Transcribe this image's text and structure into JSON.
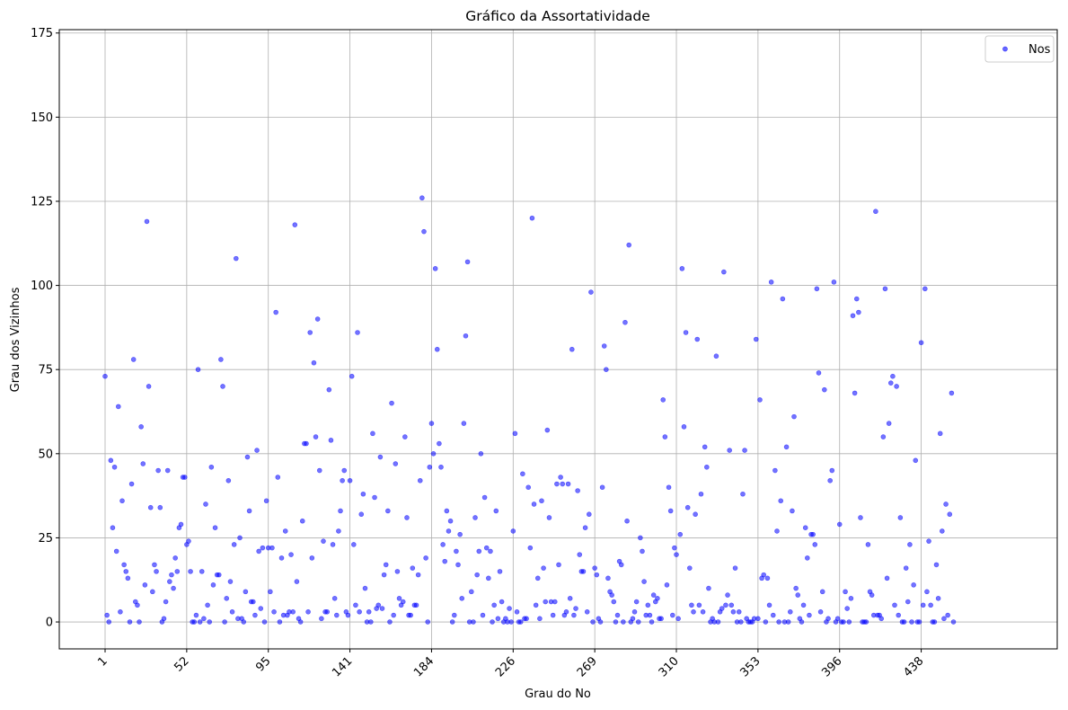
{
  "chart_data": {
    "type": "scatter",
    "title": "Gráfico da Assortatividade",
    "xlabel": "Grau do No",
    "ylabel": "Grau dos Vizinhos",
    "ylim": [
      -8,
      176
    ],
    "yticks": [
      0,
      25,
      50,
      75,
      100,
      125,
      150,
      175
    ],
    "xtick_labels": [
      "1",
      "52",
      "95",
      "141",
      "184",
      "226",
      "269",
      "310",
      "353",
      "396",
      "438"
    ],
    "grid": true,
    "legend": {
      "label": "Nos",
      "position": "top-right"
    },
    "marker_color": "#0000ff",
    "series": [
      {
        "name": "Nos",
        "y": [
          73,
          2,
          0,
          48,
          28,
          46,
          21,
          64,
          3,
          36,
          17,
          15,
          13,
          0,
          41,
          78,
          6,
          5,
          0,
          58,
          47,
          11,
          119,
          70,
          34,
          9,
          17,
          15,
          45,
          34,
          0,
          1,
          6,
          45,
          12,
          14,
          10,
          19,
          15,
          28,
          29,
          43,
          43,
          23,
          24,
          15,
          0,
          0,
          2,
          75,
          0,
          15,
          1,
          35,
          5,
          0,
          46,
          11,
          28,
          14,
          14,
          78,
          70,
          0,
          7,
          42,
          12,
          3,
          23,
          108,
          1,
          25,
          1,
          0,
          9,
          49,
          33,
          6,
          6,
          2,
          51,
          21,
          4,
          22,
          0,
          36,
          22,
          9,
          22,
          3,
          92,
          43,
          0,
          19,
          2,
          27,
          2,
          3,
          20,
          3,
          118,
          12,
          1,
          0,
          30,
          53,
          53,
          3,
          86,
          19,
          77,
          55,
          90,
          45,
          1,
          24,
          3,
          3,
          69,
          54,
          23,
          7,
          2,
          27,
          33,
          42,
          45,
          3,
          2,
          42,
          73,
          23,
          5,
          86,
          3,
          32,
          38,
          10,
          0,
          3,
          0,
          56,
          37,
          4,
          5,
          49,
          4,
          14,
          17,
          33,
          0,
          65,
          2,
          47,
          15,
          7,
          5,
          6,
          55,
          31,
          2,
          2,
          16,
          5,
          5,
          14,
          42,
          126,
          116,
          19,
          0,
          46,
          59,
          50,
          105,
          81,
          53,
          46,
          23,
          18,
          33,
          27,
          30,
          0,
          2,
          21,
          17,
          26,
          7,
          59,
          85,
          107,
          0,
          9,
          0,
          31,
          14,
          21,
          50,
          2,
          37,
          22,
          13,
          21,
          0,
          5,
          33,
          1,
          15,
          6,
          0,
          1,
          0,
          4,
          0,
          27,
          56,
          3,
          0,
          0,
          44,
          1,
          1,
          40,
          22,
          120,
          35,
          5,
          13,
          1,
          36,
          16,
          6,
          57,
          31,
          6,
          2,
          6,
          41,
          17,
          43,
          41,
          2,
          3,
          41,
          7,
          81,
          2,
          4,
          39,
          20,
          15,
          15,
          28,
          3,
          32,
          98,
          0,
          16,
          14,
          1,
          0,
          40,
          82,
          75,
          13,
          9,
          8,
          6,
          0,
          2,
          18,
          17,
          0,
          89,
          30,
          112,
          0,
          1,
          3,
          6,
          0,
          25,
          21,
          12,
          2,
          5,
          2,
          0,
          8,
          6,
          7,
          1,
          1,
          66,
          55,
          11,
          40,
          33,
          2,
          22,
          20,
          1,
          26,
          105,
          58,
          86,
          34,
          16,
          5,
          3,
          32,
          84,
          5,
          38,
          3,
          52,
          46,
          10,
          0,
          1,
          0,
          79,
          0,
          3,
          4,
          104,
          5,
          8,
          51,
          5,
          3,
          16,
          0,
          3,
          0,
          38,
          51,
          1,
          0,
          0,
          0,
          1,
          84,
          1,
          66,
          13,
          14,
          0,
          13,
          5,
          101,
          2,
          45,
          27,
          0,
          36,
          96,
          0,
          52,
          0,
          3,
          33,
          61,
          10,
          8,
          1,
          0,
          5,
          28,
          19,
          2,
          26,
          26,
          23,
          99,
          74,
          3,
          9,
          69,
          0,
          1,
          42,
          45,
          101,
          0,
          1,
          29,
          0,
          0,
          9,
          4,
          0,
          7,
          91,
          68,
          96,
          92,
          31,
          0,
          0,
          0,
          23,
          9,
          8,
          2,
          122,
          2,
          2,
          1,
          55,
          99,
          13,
          59,
          71,
          73,
          5,
          70,
          2,
          31,
          0,
          0,
          16,
          6,
          23,
          0,
          11,
          48,
          0,
          0,
          83,
          5,
          99,
          9,
          24,
          5,
          0,
          0,
          17,
          7,
          56,
          27,
          1,
          35,
          2,
          32,
          68,
          0
        ]
      }
    ]
  }
}
